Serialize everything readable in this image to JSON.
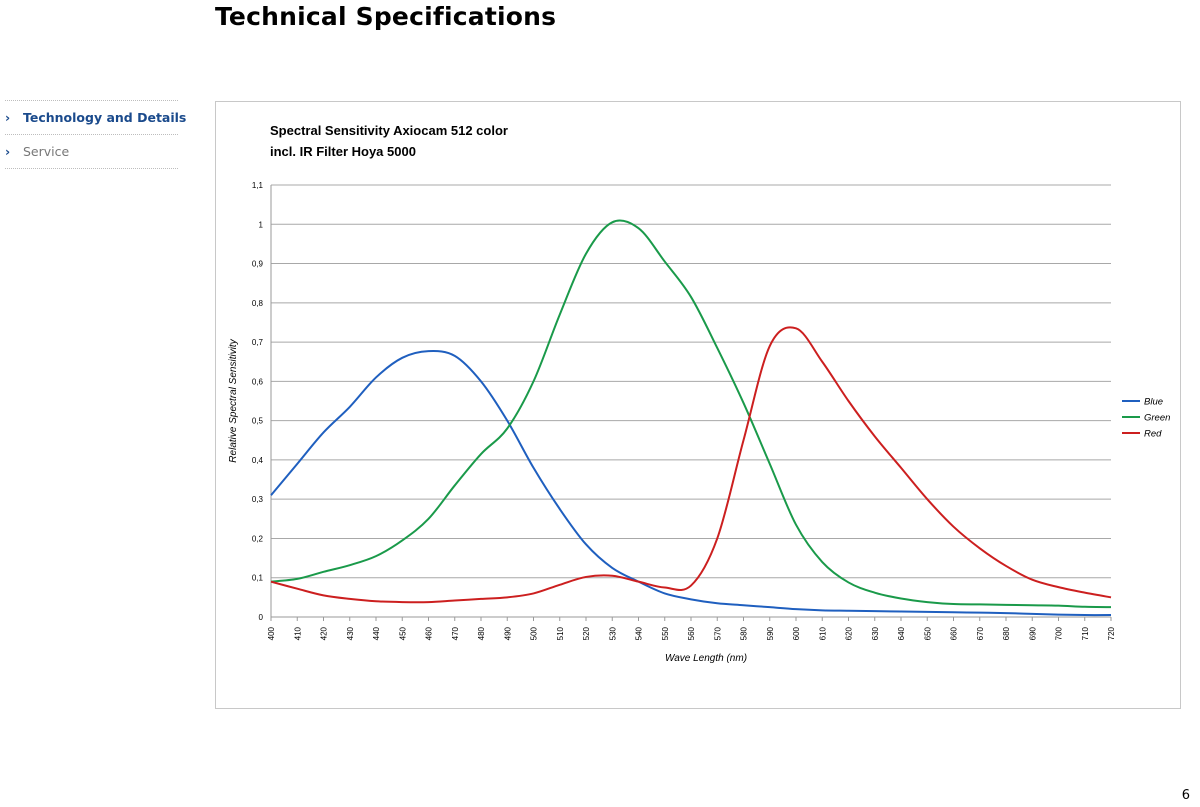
{
  "page": {
    "title": "Technical Specifications",
    "page_number": "6"
  },
  "nav": {
    "items": [
      {
        "label": "Technology and Details",
        "active": true
      },
      {
        "label": "Service",
        "active": false
      }
    ],
    "chevron": "›"
  },
  "chart_data": {
    "type": "line",
    "title": "Spectral Sensitivity Axiocam 512 color",
    "subtitle": "incl. IR Filter Hoya 5000",
    "xlabel": "Wave Length (nm)",
    "ylabel": "Relative Spectral Sensitivity",
    "xlim": [
      400,
      720
    ],
    "ylim": [
      0,
      1.1
    ],
    "x_ticks": [
      400,
      410,
      420,
      430,
      440,
      450,
      460,
      470,
      480,
      490,
      500,
      510,
      520,
      530,
      540,
      550,
      560,
      570,
      580,
      590,
      600,
      610,
      620,
      630,
      640,
      650,
      660,
      670,
      680,
      690,
      700,
      710,
      720
    ],
    "y_ticks": [
      "0",
      "0,1",
      "0,2",
      "0,3",
      "0,4",
      "0,5",
      "0,6",
      "0,7",
      "0,8",
      "0,9",
      "1",
      "1,1"
    ],
    "grid": true,
    "legend_position": "right",
    "x": [
      400,
      410,
      420,
      430,
      440,
      450,
      460,
      470,
      480,
      490,
      500,
      510,
      520,
      530,
      540,
      550,
      560,
      570,
      580,
      590,
      600,
      610,
      620,
      630,
      640,
      650,
      660,
      670,
      680,
      690,
      700,
      710,
      720
    ],
    "series": [
      {
        "name": "Blue",
        "color": "#1f5fbf",
        "values": [
          0.31,
          0.39,
          0.47,
          0.535,
          0.61,
          0.66,
          0.677,
          0.665,
          0.6,
          0.5,
          0.38,
          0.275,
          0.185,
          0.125,
          0.09,
          0.06,
          0.045,
          0.035,
          0.03,
          0.025,
          0.02,
          0.017,
          0.016,
          0.015,
          0.014,
          0.013,
          0.012,
          0.011,
          0.01,
          0.008,
          0.006,
          0.005,
          0.005
        ]
      },
      {
        "name": "Green",
        "color": "#1a9a4a",
        "values": [
          0.09,
          0.097,
          0.115,
          0.132,
          0.155,
          0.195,
          0.25,
          0.335,
          0.415,
          0.48,
          0.6,
          0.77,
          0.925,
          1.005,
          0.99,
          0.905,
          0.815,
          0.685,
          0.545,
          0.39,
          0.235,
          0.14,
          0.088,
          0.062,
          0.047,
          0.038,
          0.033,
          0.032,
          0.031,
          0.03,
          0.029,
          0.026,
          0.025
        ]
      },
      {
        "name": "Red",
        "color": "#cc1f1f",
        "values": [
          0.09,
          0.072,
          0.055,
          0.046,
          0.04,
          0.038,
          0.038,
          0.042,
          0.046,
          0.05,
          0.06,
          0.082,
          0.102,
          0.105,
          0.09,
          0.075,
          0.08,
          0.2,
          0.45,
          0.69,
          0.735,
          0.65,
          0.55,
          0.46,
          0.38,
          0.3,
          0.23,
          0.175,
          0.13,
          0.095,
          0.076,
          0.062,
          0.05
        ]
      }
    ]
  }
}
